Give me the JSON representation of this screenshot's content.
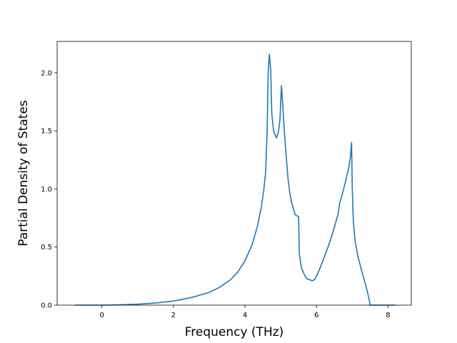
{
  "chart_data": {
    "type": "line",
    "title": "",
    "xlabel": "Frequency (THz)",
    "ylabel": "Partial Density of States",
    "xlim": [
      -1.25,
      8.65
    ],
    "ylim": [
      0.0,
      2.27
    ],
    "xticks": [
      0,
      2,
      4,
      6,
      8
    ],
    "xtick_labels": [
      "0",
      "2",
      "4",
      "6",
      "8"
    ],
    "yticks": [
      0.0,
      0.5,
      1.0,
      1.5,
      2.0
    ],
    "ytick_labels": [
      "0.0",
      "0.5",
      "1.0",
      "1.5",
      "2.0"
    ],
    "grid": false,
    "legend": "none",
    "series": [
      {
        "color": "#1f77b4",
        "x": [
          -0.75,
          0.0,
          0.5,
          1.0,
          1.5,
          2.0,
          2.5,
          3.0,
          3.3,
          3.6,
          3.8,
          4.0,
          4.2,
          4.35,
          4.45,
          4.53,
          4.58,
          4.62,
          4.65,
          4.68,
          4.72,
          4.75,
          4.8,
          4.88,
          4.93,
          4.98,
          5.02,
          5.05,
          5.1,
          5.15,
          5.2,
          5.25,
          5.3,
          5.4,
          5.5,
          5.52,
          5.58,
          5.65,
          5.72,
          5.8,
          5.88,
          5.95,
          6.03,
          6.1,
          6.2,
          6.3,
          6.4,
          6.5,
          6.6,
          6.65,
          6.7,
          6.8,
          6.9,
          6.95,
          6.98,
          7.0,
          7.03,
          7.08,
          7.15,
          7.25,
          7.35,
          7.42,
          7.47,
          7.5,
          7.6,
          7.8,
          8.0,
          8.2
        ],
        "y": [
          0.0,
          0.0,
          0.003,
          0.008,
          0.018,
          0.035,
          0.065,
          0.11,
          0.155,
          0.22,
          0.285,
          0.38,
          0.52,
          0.68,
          0.83,
          1.0,
          1.15,
          1.5,
          2.0,
          2.16,
          2.03,
          1.65,
          1.5,
          1.44,
          1.48,
          1.6,
          1.89,
          1.75,
          1.5,
          1.3,
          1.1,
          0.97,
          0.89,
          0.78,
          0.76,
          0.44,
          0.32,
          0.27,
          0.23,
          0.22,
          0.21,
          0.22,
          0.27,
          0.32,
          0.4,
          0.48,
          0.57,
          0.67,
          0.78,
          0.88,
          0.93,
          1.05,
          1.18,
          1.28,
          1.4,
          1.0,
          0.72,
          0.55,
          0.43,
          0.31,
          0.2,
          0.12,
          0.05,
          0.0,
          0.0,
          0.0,
          0.0,
          0.0
        ]
      }
    ]
  }
}
